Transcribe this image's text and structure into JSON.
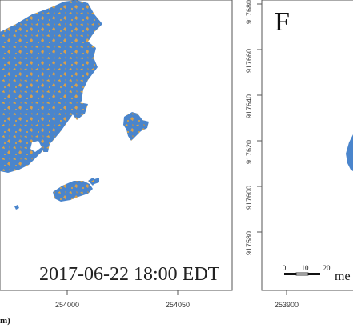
{
  "left_panel": {
    "timestamp": "2017-06-22 18:00 EDT",
    "x_ticks": [
      "254000",
      "254050"
    ],
    "x_axis_label_fragment": "m)",
    "land_color": "#4a85cc",
    "highlight_color": "#e3a53a"
  },
  "right_panel": {
    "panel_letter": "F",
    "y_ticks": [
      "917680",
      "917660",
      "917640",
      "917620",
      "917600",
      "917580"
    ],
    "x_ticks": [
      "253900"
    ],
    "scale_bar": {
      "labels": [
        "0",
        "10",
        "20"
      ],
      "unit_fragment": "me"
    }
  }
}
